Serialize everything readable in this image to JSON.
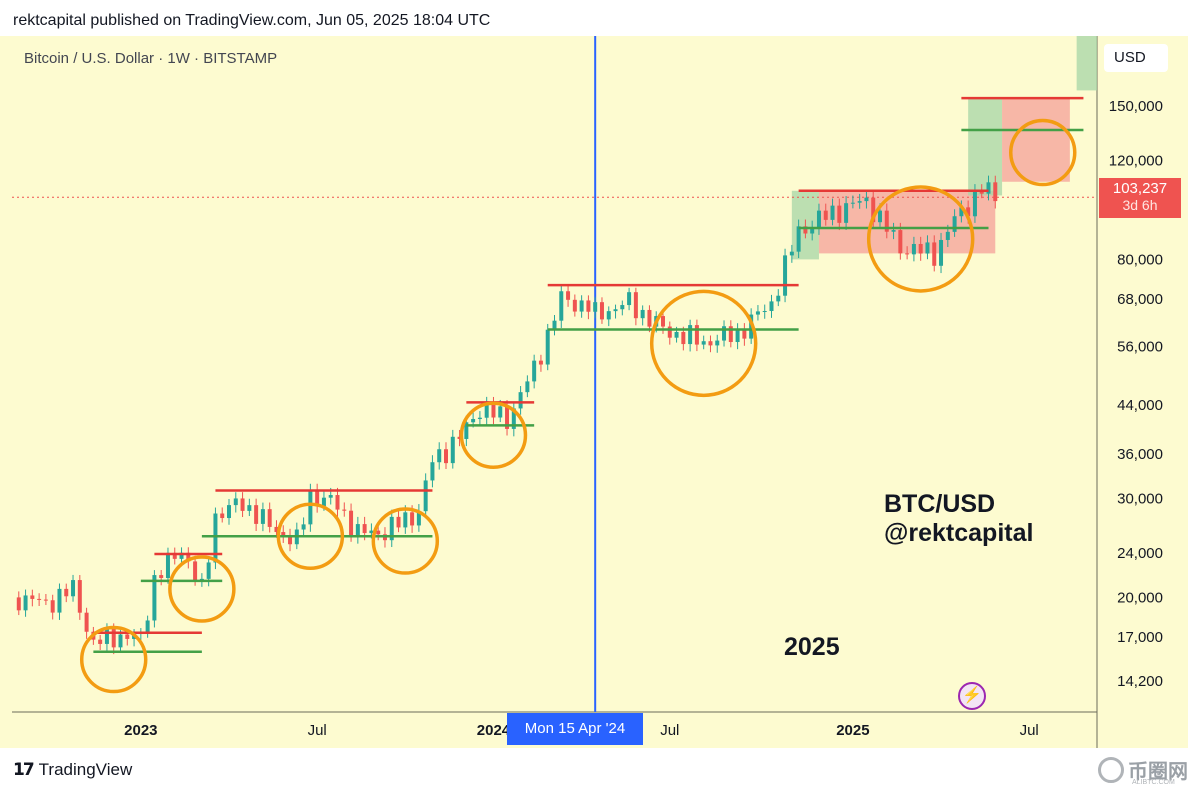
{
  "header": {
    "publisher_line": "rektcapital published on TradingView.com, Jun 05, 2025 18:04 UTC"
  },
  "chart": {
    "symbol_line": "Bitcoin / U.S. Dollar · 1W · BITSTAMP",
    "currency": "USD",
    "last_price": "103,237",
    "countdown": "3d 6h",
    "cursor_date": "Mon 15 Apr '24",
    "annotation_pair": "BTC/USD",
    "annotation_handle": "@rektcapital",
    "annotation_year": "2025"
  },
  "footer": {
    "brand": "TradingView",
    "watermark": "币圈网",
    "watermark_sub": "ALIBTC.COM"
  },
  "colors": {
    "background": "#fdfbd0",
    "up": "#26a69a",
    "down": "#ef5350",
    "resistance": "#e53935",
    "support": "#43a047",
    "circle": "#f39c12",
    "cursor": "#2962ff"
  },
  "chart_data": {
    "type": "candlestick",
    "scale": "log",
    "x_ticks": [
      "2023",
      "Jul",
      "2024",
      "Jul",
      "2025",
      "Jul"
    ],
    "y_ticks": [
      150000,
      120000,
      80000,
      68000,
      56000,
      44000,
      36000,
      30000,
      24000,
      20000,
      17000,
      14200
    ],
    "y_range": [
      12500,
      200000
    ],
    "x_range": [
      "2022-08-22",
      "2025-09-15"
    ],
    "close_series": [
      {
        "t": "2022-08-29",
        "c": 20000
      },
      {
        "t": "2022-09-26",
        "c": 19500
      },
      {
        "t": "2022-10-24",
        "c": 20700
      },
      {
        "t": "2022-11-14",
        "c": 16500
      },
      {
        "t": "2022-12-05",
        "c": 17100
      },
      {
        "t": "2023-01-02",
        "c": 16900
      },
      {
        "t": "2023-01-16",
        "c": 21500
      },
      {
        "t": "2023-02-13",
        "c": 24500
      },
      {
        "t": "2023-03-06",
        "c": 20500
      },
      {
        "t": "2023-03-20",
        "c": 28000
      },
      {
        "t": "2023-04-17",
        "c": 29500
      },
      {
        "t": "2023-05-15",
        "c": 26800
      },
      {
        "t": "2023-06-12",
        "c": 25100
      },
      {
        "t": "2023-06-26",
        "c": 30500
      },
      {
        "t": "2023-07-24",
        "c": 29200
      },
      {
        "t": "2023-08-14",
        "c": 26000
      },
      {
        "t": "2023-09-11",
        "c": 26200
      },
      {
        "t": "2023-10-16",
        "c": 28500
      },
      {
        "t": "2023-10-30",
        "c": 35000
      },
      {
        "t": "2023-11-27",
        "c": 38500
      },
      {
        "t": "2023-12-18",
        "c": 43500
      },
      {
        "t": "2024-01-15",
        "c": 41500
      },
      {
        "t": "2024-02-12",
        "c": 51000
      },
      {
        "t": "2024-03-11",
        "c": 68000
      },
      {
        "t": "2024-04-08",
        "c": 66000
      },
      {
        "t": "2024-04-15",
        "c": 63800
      },
      {
        "t": "2024-05-20",
        "c": 67000
      },
      {
        "t": "2024-06-24",
        "c": 60000
      },
      {
        "t": "2024-08-05",
        "c": 57000
      },
      {
        "t": "2024-09-09",
        "c": 59000
      },
      {
        "t": "2024-10-14",
        "c": 67000
      },
      {
        "t": "2024-11-11",
        "c": 90000
      },
      {
        "t": "2024-12-16",
        "c": 97000
      },
      {
        "t": "2025-01-20",
        "c": 102000
      },
      {
        "t": "2025-02-24",
        "c": 84000
      },
      {
        "t": "2025-03-31",
        "c": 82000
      },
      {
        "t": "2025-04-21",
        "c": 94000
      },
      {
        "t": "2025-05-19",
        "c": 107000
      },
      {
        "t": "2025-06-02",
        "c": 103237
      }
    ],
    "resistance_levels": [
      {
        "from": "2022-11-14",
        "to": "2023-03-06",
        "value": 17300
      },
      {
        "from": "2023-01-16",
        "to": "2023-03-27",
        "value": 23900
      },
      {
        "from": "2023-03-20",
        "to": "2023-10-30",
        "value": 31000
      },
      {
        "from": "2023-12-04",
        "to": "2024-02-12",
        "value": 44500
      },
      {
        "from": "2024-02-26",
        "to": "2024-11-11",
        "value": 72000
      },
      {
        "from": "2024-11-11",
        "to": "2025-05-26",
        "value": 106000
      },
      {
        "from": "2025-04-28",
        "to": "2025-09-01",
        "value": 155000
      }
    ],
    "support_levels": [
      {
        "from": "2022-11-14",
        "to": "2023-03-06",
        "value": 16000
      },
      {
        "from": "2023-01-02",
        "to": "2023-03-27",
        "value": 21400
      },
      {
        "from": "2023-03-06",
        "to": "2023-10-30",
        "value": 25700
      },
      {
        "from": "2023-12-04",
        "to": "2024-02-12",
        "value": 40500
      },
      {
        "from": "2024-02-26",
        "to": "2024-11-11",
        "value": 60000
      },
      {
        "from": "2024-11-11",
        "to": "2025-05-26",
        "value": 91000
      },
      {
        "from": "2025-04-28",
        "to": "2025-09-01",
        "value": 136000
      }
    ],
    "current_price": 103237,
    "cursor_date": "2024-04-15"
  }
}
